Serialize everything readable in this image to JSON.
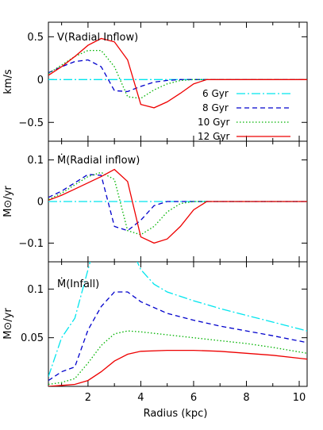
{
  "chart_data": [
    {
      "type": "line",
      "panel_label": "V(Radial Inflow)",
      "ylabel": "km/s",
      "xlim": [
        0.5,
        10.3
      ],
      "ylim": [
        -0.72,
        0.67
      ],
      "yticks": [
        -0.5,
        0,
        0.5
      ],
      "ytick_labels": [
        "−0.5",
        "0",
        "0.5"
      ],
      "legend_position": "bottom-right",
      "series": [
        {
          "name": "6 Gyr",
          "color": "#00e5ee",
          "dash": "dashdot",
          "x": [
            0.5,
            10.3
          ],
          "y": [
            0,
            0
          ]
        },
        {
          "name": "8 Gyr",
          "color": "#0000cc",
          "dash": "dash",
          "x": [
            0.5,
            1.0,
            1.5,
            2.0,
            2.5,
            3.0,
            3.5,
            4.0,
            4.5,
            5.0,
            5.5,
            6.0,
            10.3
          ],
          "y": [
            0.08,
            0.15,
            0.21,
            0.23,
            0.15,
            -0.13,
            -0.14,
            -0.08,
            -0.03,
            -0.01,
            0,
            0,
            0
          ]
        },
        {
          "name": "10 Gyr",
          "color": "#00b300",
          "dash": "dot",
          "x": [
            0.5,
            1.0,
            1.5,
            2.0,
            2.5,
            3.0,
            3.5,
            4.0,
            4.5,
            5.0,
            5.5,
            6.0,
            10.3
          ],
          "y": [
            0.07,
            0.17,
            0.27,
            0.34,
            0.34,
            0.15,
            -0.2,
            -0.22,
            -0.12,
            -0.05,
            -0.01,
            0,
            0
          ]
        },
        {
          "name": "12 Gyr",
          "color": "#ee0000",
          "dash": "solid",
          "x": [
            0.5,
            1.0,
            1.5,
            2.0,
            2.5,
            3.0,
            3.5,
            4.0,
            4.5,
            5.0,
            5.5,
            6.0,
            6.5,
            10.3
          ],
          "y": [
            0.05,
            0.15,
            0.27,
            0.4,
            0.48,
            0.44,
            0.23,
            -0.29,
            -0.33,
            -0.26,
            -0.16,
            -0.05,
            0,
            0
          ]
        }
      ]
    },
    {
      "type": "line",
      "panel_label": "Ṁ(Radial inflow)",
      "ylabel": "M⊙/yr",
      "xlim": [
        0.5,
        10.3
      ],
      "ylim": [
        -0.145,
        0.145
      ],
      "yticks": [
        -0.1,
        0,
        0.1
      ],
      "ytick_labels": [
        "−0.1",
        "0",
        "0.1"
      ],
      "series": [
        {
          "color": "#00e5ee",
          "dash": "dashdot",
          "x": [
            0.5,
            10.3
          ],
          "y": [
            0,
            0
          ]
        },
        {
          "color": "#0000cc",
          "dash": "dash",
          "x": [
            0.5,
            1.0,
            1.5,
            2.0,
            2.5,
            3.0,
            3.5,
            4.0,
            4.5,
            5.0,
            5.5,
            6.0,
            10.3
          ],
          "y": [
            0.01,
            0.025,
            0.045,
            0.065,
            0.063,
            -0.06,
            -0.07,
            -0.045,
            -0.01,
            0,
            0,
            0,
            0
          ]
        },
        {
          "color": "#00b300",
          "dash": "dot",
          "x": [
            0.5,
            1.0,
            1.5,
            2.0,
            2.5,
            3.0,
            3.5,
            4.0,
            4.5,
            5.0,
            5.5,
            6.0,
            10.3
          ],
          "y": [
            0.005,
            0.02,
            0.04,
            0.06,
            0.07,
            0.053,
            -0.07,
            -0.08,
            -0.06,
            -0.025,
            -0.005,
            0,
            0
          ]
        },
        {
          "color": "#ee0000",
          "dash": "solid",
          "x": [
            0.5,
            1.0,
            1.5,
            2.0,
            2.5,
            3.0,
            3.5,
            4.0,
            4.5,
            5.0,
            5.5,
            6.0,
            6.5,
            10.3
          ],
          "y": [
            0.003,
            0.015,
            0.03,
            0.045,
            0.06,
            0.077,
            0.048,
            -0.085,
            -0.1,
            -0.09,
            -0.06,
            -0.02,
            0,
            0
          ]
        }
      ]
    },
    {
      "type": "line",
      "panel_label": "Ṁ(Infall)",
      "ylabel": "M⊙/yr",
      "xlabel": "Radius (kpc)",
      "xlim": [
        0.5,
        10.3
      ],
      "ylim": [
        0.0,
        0.128
      ],
      "xticks": [
        2,
        4,
        6,
        8,
        10
      ],
      "xtick_labels": [
        "2",
        "4",
        "6",
        "8",
        "10"
      ],
      "yticks": [
        0.05,
        0.1
      ],
      "ytick_labels": [
        "0.05",
        "0.1"
      ],
      "series": [
        {
          "color": "#00e5ee",
          "dash": "dashdot",
          "x": [
            0.5,
            1.0,
            1.5,
            2.0,
            2.3,
            3.5,
            4.0,
            4.5,
            5.0,
            6.0,
            7.0,
            8.0,
            9.0,
            10.3
          ],
          "y": [
            0.01,
            0.05,
            0.07,
            0.12,
            0.15,
            0.15,
            0.12,
            0.105,
            0.097,
            0.088,
            0.08,
            0.073,
            0.066,
            0.057
          ]
        },
        {
          "color": "#0000cc",
          "dash": "dash",
          "x": [
            0.5,
            1.0,
            1.5,
            2.0,
            2.5,
            3.0,
            3.5,
            4.0,
            5.0,
            6.0,
            7.0,
            8.0,
            9.0,
            10.3
          ],
          "y": [
            0.006,
            0.015,
            0.02,
            0.058,
            0.082,
            0.097,
            0.097,
            0.087,
            0.075,
            0.068,
            0.062,
            0.057,
            0.052,
            0.045
          ]
        },
        {
          "color": "#00b300",
          "dash": "dot",
          "x": [
            0.5,
            1.0,
            1.5,
            2.0,
            2.5,
            3.0,
            3.5,
            4.0,
            5.0,
            6.0,
            7.0,
            8.0,
            9.0,
            10.3
          ],
          "y": [
            0.002,
            0.004,
            0.008,
            0.024,
            0.042,
            0.054,
            0.057,
            0.056,
            0.053,
            0.05,
            0.047,
            0.044,
            0.04,
            0.034
          ]
        },
        {
          "color": "#ee0000",
          "dash": "solid",
          "x": [
            0.5,
            1.0,
            1.5,
            2.0,
            2.5,
            3.0,
            3.5,
            4.0,
            5.0,
            6.0,
            7.0,
            8.0,
            9.0,
            10.3
          ],
          "y": [
            0.0,
            0.001,
            0.002,
            0.006,
            0.015,
            0.026,
            0.033,
            0.036,
            0.037,
            0.037,
            0.036,
            0.034,
            0.032,
            0.028
          ]
        }
      ]
    }
  ]
}
